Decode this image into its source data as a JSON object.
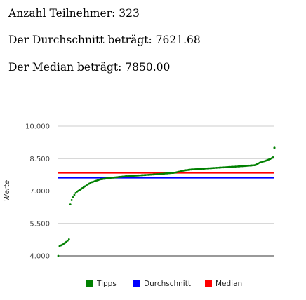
{
  "stats": {
    "participants": "Anzahl Teilnehmer: 323",
    "average": "Der Durchschnitt beträgt: 7621.68",
    "median": "Der Median beträgt: 7850.00"
  },
  "chart_data": {
    "type": "line",
    "title": "",
    "xlabel": "",
    "ylabel": "Werte",
    "ylim": [
      4000,
      10000
    ],
    "yticks": [
      {
        "value": 4000,
        "label": "4.000"
      },
      {
        "value": 5500,
        "label": "5.500"
      },
      {
        "value": 7000,
        "label": "7.000"
      },
      {
        "value": 8500,
        "label": "8.500"
      },
      {
        "value": 10000,
        "label": "10.000"
      }
    ],
    "grid": true,
    "legend": "bottom",
    "series": [
      {
        "name": "Tipps",
        "color": "#008000",
        "style": "points",
        "x_range": [
          1,
          323
        ],
        "points": [
          [
            1,
            4000
          ],
          [
            3,
            4450
          ],
          [
            7,
            4520
          ],
          [
            12,
            4620
          ],
          [
            16,
            4730
          ],
          [
            18,
            4800
          ],
          [
            19,
            6380
          ],
          [
            21,
            6580
          ],
          [
            24,
            6780
          ],
          [
            28,
            6950
          ],
          [
            33,
            7050
          ],
          [
            40,
            7200
          ],
          [
            50,
            7400
          ],
          [
            65,
            7550
          ],
          [
            80,
            7610
          ],
          [
            100,
            7680
          ],
          [
            125,
            7730
          ],
          [
            150,
            7780
          ],
          [
            175,
            7850
          ],
          [
            188,
            7950
          ],
          [
            200,
            8000
          ],
          [
            225,
            8050
          ],
          [
            250,
            8100
          ],
          [
            275,
            8150
          ],
          [
            295,
            8200
          ],
          [
            300,
            8300
          ],
          [
            310,
            8400
          ],
          [
            318,
            8500
          ],
          [
            321,
            8560
          ],
          [
            323,
            9000
          ]
        ]
      },
      {
        "name": "Durchschnitt",
        "color": "#0000ff",
        "style": "line",
        "value": 7621.68
      },
      {
        "name": "Median",
        "color": "#ff0000",
        "style": "line",
        "value": 7850.0
      }
    ]
  }
}
